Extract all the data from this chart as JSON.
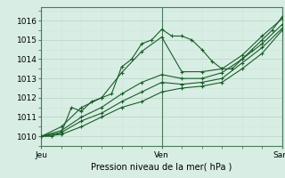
{
  "background_color": "#d8eee4",
  "grid_color_major": "#b8d8c8",
  "grid_color_minor": "#cce8d8",
  "line_color": "#1a5c28",
  "marker_color": "#1a5c28",
  "xlabel": "Pression niveau de la mer( hPa )",
  "ylim": [
    1009.5,
    1016.7
  ],
  "xlim": [
    0,
    48
  ],
  "yticks": [
    1010,
    1011,
    1012,
    1013,
    1014,
    1015,
    1016
  ],
  "xtick_labels": [
    "Jeu",
    "Ven",
    "Sam"
  ],
  "xtick_positions": [
    0,
    24,
    48
  ],
  "vlines": [
    0,
    24,
    48
  ],
  "series": [
    [
      0,
      1010.0,
      2,
      1010.0,
      4,
      1010.2,
      6,
      1011.5,
      8,
      1011.3,
      10,
      1011.8,
      12,
      1012.0,
      14,
      1012.2,
      16,
      1013.6,
      18,
      1014.0,
      20,
      1014.8,
      22,
      1015.0,
      24,
      1015.55,
      26,
      1015.2,
      28,
      1015.2,
      30,
      1015.0,
      32,
      1014.5,
      34,
      1013.9,
      36,
      1013.5,
      38,
      1013.5,
      40,
      1014.0,
      42,
      1014.5,
      44,
      1015.0,
      46,
      1015.5,
      48,
      1016.2
    ],
    [
      0,
      1010.0,
      4,
      1010.5,
      8,
      1011.5,
      12,
      1012.0,
      16,
      1013.3,
      20,
      1014.4,
      24,
      1015.15,
      28,
      1013.35,
      32,
      1013.35,
      36,
      1013.5,
      40,
      1014.2,
      44,
      1015.2,
      48,
      1016.1
    ],
    [
      0,
      1010.0,
      4,
      1010.3,
      8,
      1011.0,
      12,
      1011.5,
      16,
      1012.2,
      20,
      1012.8,
      24,
      1013.2,
      28,
      1013.0,
      32,
      1013.0,
      36,
      1013.3,
      40,
      1014.0,
      44,
      1014.8,
      48,
      1015.8
    ],
    [
      0,
      1010.0,
      4,
      1010.2,
      8,
      1010.8,
      12,
      1011.2,
      16,
      1011.8,
      20,
      1012.3,
      24,
      1012.8,
      28,
      1012.7,
      32,
      1012.8,
      36,
      1013.0,
      40,
      1013.8,
      44,
      1014.6,
      48,
      1015.6
    ],
    [
      0,
      1010.0,
      4,
      1010.1,
      8,
      1010.5,
      12,
      1011.0,
      16,
      1011.5,
      20,
      1011.8,
      24,
      1012.3,
      28,
      1012.5,
      32,
      1012.6,
      36,
      1012.8,
      40,
      1013.5,
      44,
      1014.3,
      48,
      1015.5
    ]
  ]
}
